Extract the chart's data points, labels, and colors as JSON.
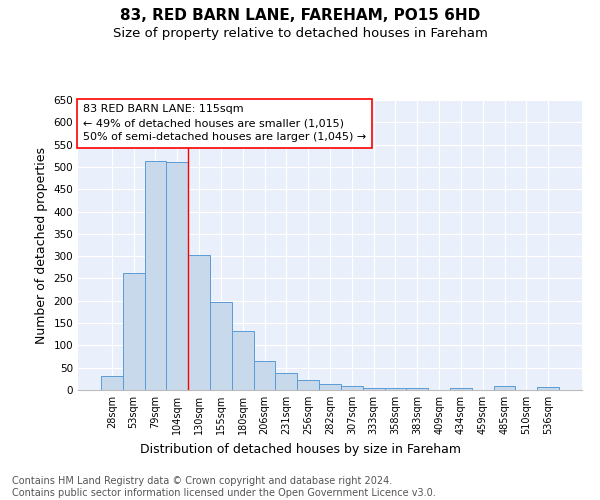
{
  "title1": "83, RED BARN LANE, FAREHAM, PO15 6HD",
  "title2": "Size of property relative to detached houses in Fareham",
  "xlabel": "Distribution of detached houses by size in Fareham",
  "ylabel": "Number of detached properties",
  "categories": [
    "28sqm",
    "53sqm",
    "79sqm",
    "104sqm",
    "130sqm",
    "155sqm",
    "180sqm",
    "206sqm",
    "231sqm",
    "256sqm",
    "282sqm",
    "307sqm",
    "333sqm",
    "358sqm",
    "383sqm",
    "409sqm",
    "434sqm",
    "459sqm",
    "485sqm",
    "510sqm",
    "536sqm"
  ],
  "values": [
    32,
    263,
    513,
    510,
    302,
    197,
    132,
    65,
    38,
    22,
    14,
    9,
    5,
    5,
    5,
    0,
    5,
    0,
    8,
    0,
    6
  ],
  "bar_color": "#c9d9ec",
  "bar_edge_color": "#5b9bd5",
  "annotation_box_text": "83 RED BARN LANE: 115sqm\n← 49% of detached houses are smaller (1,015)\n50% of semi-detached houses are larger (1,045) →",
  "annotation_box_color": "white",
  "annotation_box_edge_color": "red",
  "vline_color": "red",
  "vline_x": 3.5,
  "ylim": [
    0,
    650
  ],
  "yticks": [
    0,
    50,
    100,
    150,
    200,
    250,
    300,
    350,
    400,
    450,
    500,
    550,
    600,
    650
  ],
  "background_color": "#eaf0fb",
  "footer_text": "Contains HM Land Registry data © Crown copyright and database right 2024.\nContains public sector information licensed under the Open Government Licence v3.0.",
  "title1_fontsize": 11,
  "title2_fontsize": 9.5,
  "xlabel_fontsize": 9,
  "ylabel_fontsize": 9,
  "annotation_fontsize": 8,
  "footer_fontsize": 7
}
